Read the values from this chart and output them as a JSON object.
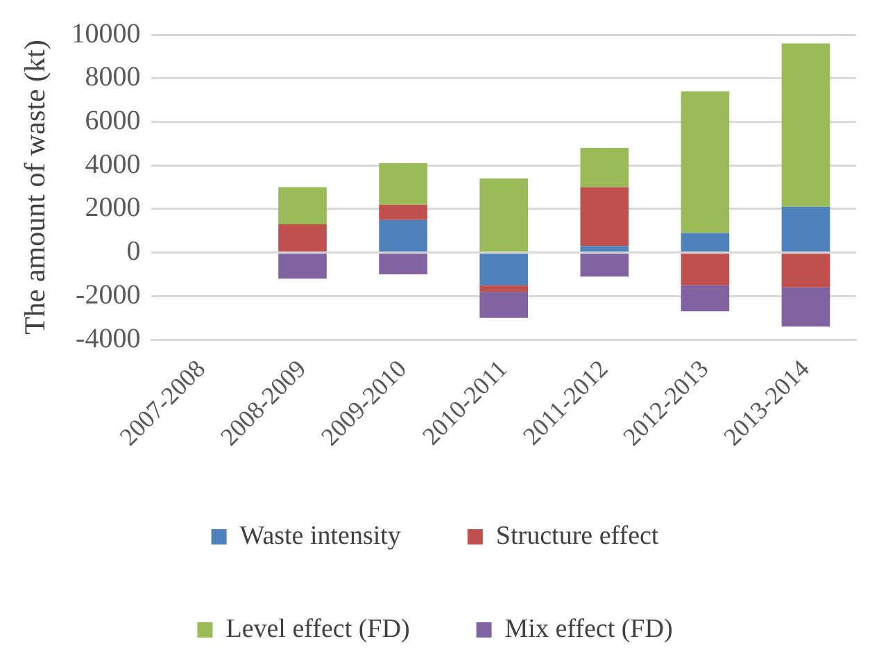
{
  "chart_data": {
    "type": "bar",
    "stacked": true,
    "ylabel": "The amount of waste (kt)",
    "categories": [
      "2007-2008",
      "2008-2009",
      "2009-2010",
      "2010-2011",
      "2011-2012",
      "2012-2013",
      "2013-2014"
    ],
    "series": [
      {
        "name": "Waste intensity",
        "color": "#4f81bd",
        "values": [
          null,
          null,
          1500,
          -1500,
          300,
          900,
          2100
        ]
      },
      {
        "name": "Structure effect",
        "color": "#c0504d",
        "values": [
          null,
          1300,
          700,
          -300,
          2700,
          -1500,
          -1600
        ]
      },
      {
        "name": "Level effect (FD)",
        "color": "#9bbb59",
        "values": [
          null,
          1700,
          1900,
          3400,
          1800,
          6500,
          7500
        ]
      },
      {
        "name": "Mix effect (FD)",
        "color": "#8064a2",
        "values": [
          null,
          -1200,
          -1000,
          -1200,
          -1100,
          -1200,
          -1800
        ]
      }
    ],
    "ylim": [
      -4000,
      10000
    ],
    "yticks": [
      -4000,
      -2000,
      0,
      2000,
      4000,
      6000,
      8000,
      10000
    ],
    "grid": "y",
    "legend": "bottom"
  }
}
